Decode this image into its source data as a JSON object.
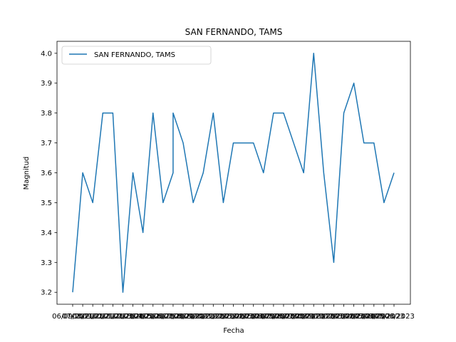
{
  "chart_data": {
    "type": "line",
    "title": "SAN FERNANDO, TAMS",
    "xlabel": "Fecha",
    "ylabel": "Magnitud",
    "ylim": [
      3.16,
      4.04
    ],
    "yticks": [
      "3.2",
      "3.3",
      "3.4",
      "3.5",
      "3.6",
      "3.7",
      "3.8",
      "3.9",
      "4.0"
    ],
    "grid": false,
    "legend_position": "top-left",
    "line_color": "#1f77b4",
    "x_tick_labels": [
      "06/09/2021",
      "07/10/2021",
      "08/11/2021",
      "09/12/2021",
      "10/01/2022",
      "11/02/2022",
      "12/03/2022",
      "13/04/2022",
      "14/05/2022",
      "15/06/2022",
      "16/07/2022",
      "17/08/2022",
      "18/09/2022",
      "19/10/2022",
      "20/11/2022",
      "21/12/2022",
      "22/01/2023",
      "23/02/2023",
      "24/03/2023",
      "25/04/2023",
      "26/05/2023",
      "27/06/2023",
      "28/07/2023",
      "29/08/2023",
      "30/09/2023",
      "31/10/2023",
      "01/12/2023",
      "02/01/2023",
      "03/02/2023",
      "04/03/2023",
      "05/04/2023",
      "06/05/2023",
      "07/06/2023"
    ],
    "series": [
      {
        "name": "SAN FERNANDO, TAMS",
        "x": [
          0,
          1,
          2,
          3,
          4,
          5,
          6,
          7,
          8,
          9,
          10,
          10,
          11,
          12,
          13,
          14,
          15,
          16,
          17,
          18,
          19,
          20,
          21,
          22,
          23,
          24,
          25,
          26,
          27,
          28,
          29,
          30,
          31,
          32
        ],
        "values": [
          3.2,
          3.6,
          3.5,
          3.8,
          3.8,
          3.2,
          3.6,
          3.4,
          3.8,
          3.5,
          3.6,
          3.8,
          3.7,
          3.5,
          3.6,
          3.8,
          3.5,
          3.7,
          3.7,
          3.7,
          3.6,
          3.8,
          3.8,
          3.7,
          3.6,
          4.0,
          3.6,
          3.3,
          3.8,
          3.9,
          3.7,
          3.7,
          3.5,
          3.6
        ]
      }
    ]
  }
}
